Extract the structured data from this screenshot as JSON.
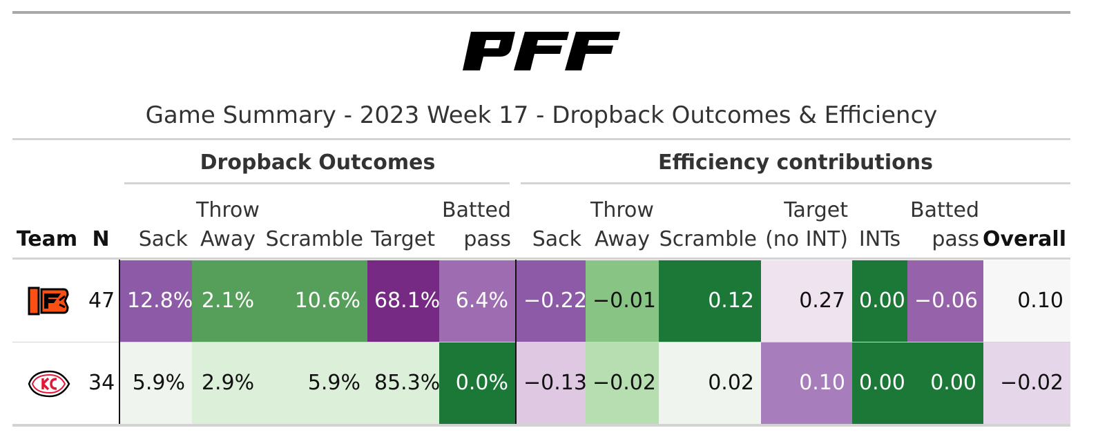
{
  "title": "Game Summary - 2023 Week 17 - Dropback Outcomes & Efficiency",
  "spanners": {
    "outcomes": "Dropback Outcomes",
    "efficiency": "Efficiency contributions"
  },
  "columns": {
    "team": "Team",
    "n": "N",
    "o_sack": [
      "Sack"
    ],
    "o_throwaway": [
      "Throw",
      "Away"
    ],
    "o_scramble": [
      "Scramble"
    ],
    "o_target": [
      "Target"
    ],
    "o_batted": [
      "Batted",
      "pass"
    ],
    "e_sack": [
      "Sack"
    ],
    "e_throwaway": [
      "Throw",
      "Away"
    ],
    "e_scramble": [
      "Scramble"
    ],
    "e_target": [
      "Target",
      "(no INT)"
    ],
    "e_ints": [
      "INTs"
    ],
    "e_batted": [
      "Batted",
      "pass"
    ],
    "overall": "Overall"
  },
  "icons": {
    "logo": "pff-logo",
    "team_logos": [
      "bengals-logo",
      "chiefs-logo"
    ]
  },
  "rows": [
    {
      "team_icon": "bengals-logo",
      "n": "47",
      "cells": [
        {
          "text": "12.8%",
          "bg": "#8c5aa6",
          "fg": "#ffffff"
        },
        {
          "text": "2.1%",
          "bg": "#569f5a",
          "fg": "#ffffff"
        },
        {
          "text": "10.6%",
          "bg": "#569f5a",
          "fg": "#ffffff"
        },
        {
          "text": "68.1%",
          "bg": "#762a83",
          "fg": "#ffffff"
        },
        {
          "text": "6.4%",
          "bg": "#9e6db1",
          "fg": "#ffffff"
        },
        {
          "text": "−0.22",
          "bg": "#8c5aa6",
          "fg": "#ffffff"
        },
        {
          "text": "−0.01",
          "bg": "#88c585",
          "fg": "#111111"
        },
        {
          "text": "0.12",
          "bg": "#1b7837",
          "fg": "#ffffff"
        },
        {
          "text": "0.27",
          "bg": "#efe3ef",
          "fg": "#111111"
        },
        {
          "text": "0.00",
          "bg": "#1b7837",
          "fg": "#ffffff"
        },
        {
          "text": "−0.06",
          "bg": "#9663ab",
          "fg": "#ffffff"
        },
        {
          "text": "0.10",
          "bg": "#f7f7f7",
          "fg": "#111111"
        }
      ]
    },
    {
      "team_icon": "chiefs-logo",
      "n": "34",
      "cells": [
        {
          "text": "5.9%",
          "bg": "#eff5ee",
          "fg": "#111111"
        },
        {
          "text": "2.9%",
          "bg": "#dcefd9",
          "fg": "#111111"
        },
        {
          "text": "5.9%",
          "bg": "#dcefd9",
          "fg": "#111111"
        },
        {
          "text": "85.3%",
          "bg": "#dcefd9",
          "fg": "#111111"
        },
        {
          "text": "0.0%",
          "bg": "#1b7837",
          "fg": "#ffffff"
        },
        {
          "text": "−0.13",
          "bg": "#dfc8e2",
          "fg": "#111111"
        },
        {
          "text": "−0.02",
          "bg": "#b6deb0",
          "fg": "#111111"
        },
        {
          "text": "0.02",
          "bg": "#eff5ee",
          "fg": "#111111"
        },
        {
          "text": "0.10",
          "bg": "#a77ebb",
          "fg": "#ffffff"
        },
        {
          "text": "0.00",
          "bg": "#1b7837",
          "fg": "#ffffff"
        },
        {
          "text": "0.00",
          "bg": "#1b7837",
          "fg": "#ffffff"
        },
        {
          "text": "−0.02",
          "bg": "#e6d6e9",
          "fg": "#111111"
        }
      ]
    }
  ]
}
